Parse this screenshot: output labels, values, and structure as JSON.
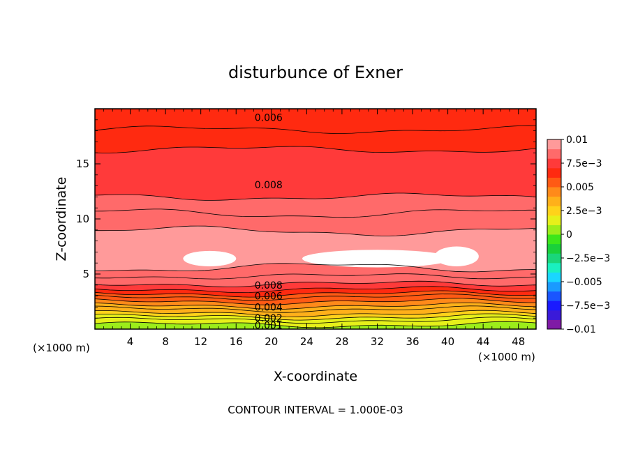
{
  "chart_data": {
    "type": "heatmap",
    "title": "disturbunce of Exner",
    "xlabel": "X-coordinate",
    "ylabel": "Z-coordinate",
    "x_unit_left": "(×1000 m)",
    "x_unit_right": "(×1000 m)",
    "footer": "CONTOUR INTERVAL = 1.000E-03",
    "xlim": [
      0,
      50
    ],
    "ylim": [
      0,
      20
    ],
    "x_ticks": [
      4,
      8,
      12,
      16,
      20,
      24,
      28,
      32,
      36,
      40,
      44,
      48
    ],
    "x_tick_labels": [
      "4",
      "8",
      "12",
      "16",
      "20",
      "24",
      "28",
      "32",
      "36",
      "40",
      "44",
      "48"
    ],
    "y_ticks": [
      5,
      10,
      15
    ],
    "y_tick_labels": [
      "5",
      "10",
      "15"
    ],
    "contour_interval": 0.001,
    "colorbar": {
      "range": [
        -0.01,
        0.01
      ],
      "tick_values": [
        0.01,
        0.0075,
        0.005,
        0.0025,
        0,
        -0.0025,
        -0.005,
        -0.0075,
        -0.01
      ],
      "tick_labels": [
        "0.01",
        "7.5e−3",
        "0.005",
        "2.5e−3",
        "0",
        "−2.5e−3",
        "−0.005",
        "−7.5e−3",
        "−0.01"
      ],
      "colors": [
        "#7f1aa6",
        "#3a1ad9",
        "#1a1aff",
        "#1a55ff",
        "#1a9aff",
        "#1ad6ff",
        "#1af0c0",
        "#1ad67a",
        "#1ad03a",
        "#3ce61a",
        "#9ced1a",
        "#e6f01a",
        "#ffd21a",
        "#ffb01a",
        "#ff8a1a",
        "#ff5a14",
        "#ff2a10",
        "#ff3a3a",
        "#ff6a6a",
        "#ff9a9a"
      ]
    },
    "contour_labels": [
      {
        "x": 20,
        "z": 19.2,
        "text": "0.006"
      },
      {
        "x": 20,
        "z": 13.1,
        "text": "0.008"
      },
      {
        "x": 20,
        "z": 4.0,
        "text": "0.008"
      },
      {
        "x": 20,
        "z": 3.0,
        "text": "0.006"
      },
      {
        "x": 20,
        "z": 2.0,
        "text": "0.004"
      },
      {
        "x": 20,
        "z": 1.0,
        "text": "0.002"
      },
      {
        "x": 20,
        "z": 0.35,
        "text": "0.001"
      }
    ],
    "field_levels": [
      {
        "z": [
          0.0,
          0.4
        ],
        "value": 0.0005
      },
      {
        "z": [
          0.4,
          0.8
        ],
        "value": 0.0012
      },
      {
        "z": [
          0.8,
          1.1
        ],
        "value": 0.0018
      },
      {
        "z": [
          1.1,
          1.4
        ],
        "value": 0.0025
      },
      {
        "z": [
          1.4,
          1.8
        ],
        "value": 0.0032
      },
      {
        "z": [
          1.8,
          2.1
        ],
        "value": 0.0038
      },
      {
        "z": [
          2.1,
          2.5
        ],
        "value": 0.0045
      },
      {
        "z": [
          2.5,
          2.9
        ],
        "value": 0.0052
      },
      {
        "z": [
          2.9,
          3.2
        ],
        "value": 0.0058
      },
      {
        "z": [
          3.2,
          3.6
        ],
        "value": 0.0065
      },
      {
        "z": [
          3.6,
          4.1
        ],
        "value": 0.0072
      },
      {
        "z": [
          4.1,
          4.8
        ],
        "value": 0.0082
      },
      {
        "z": [
          4.8,
          5.6
        ],
        "value": 0.0088
      },
      {
        "z": [
          5.6,
          8.9
        ],
        "value": 0.0095
      },
      {
        "z": [
          8.9,
          10.5
        ],
        "value": 0.0088
      },
      {
        "z": [
          10.5,
          12.0
        ],
        "value": 0.0082
      },
      {
        "z": [
          12.0,
          16.3
        ],
        "value": 0.0075
      },
      {
        "z": [
          16.3,
          18.1
        ],
        "value": 0.0068
      },
      {
        "z": [
          18.1,
          20.0
        ],
        "value": 0.0062
      }
    ],
    "max_regions": [
      {
        "x_center": 13,
        "z_center": 6.4,
        "x_halfwidth": 3.0,
        "z_halfwidth": 0.7
      },
      {
        "x_center": 32,
        "z_center": 6.4,
        "x_halfwidth": 8.5,
        "z_halfwidth": 0.8
      },
      {
        "x_center": 41,
        "z_center": 6.6,
        "x_halfwidth": 2.5,
        "z_halfwidth": 0.9
      }
    ],
    "legend_position": "right"
  }
}
